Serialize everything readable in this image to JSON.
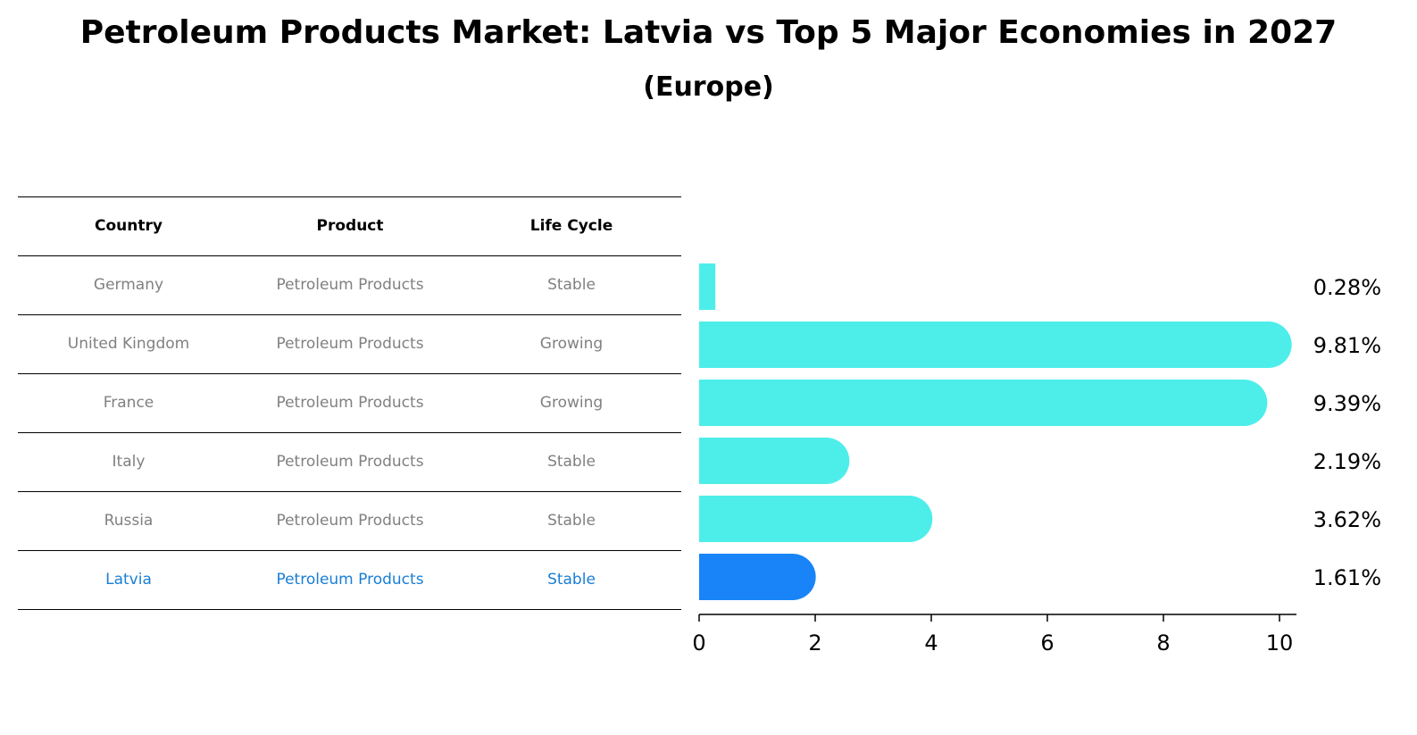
{
  "title": "Petroleum Products Market: Latvia vs Top 5 Major Economies in 2027",
  "subtitle": "(Europe)",
  "colors": {
    "bar": "#4deeea",
    "highlight_bar": "#1884f7",
    "row_text": "#808080",
    "highlight_text": "#1a7ed4"
  },
  "table": {
    "headers": [
      "Country",
      "Product",
      "Life Cycle"
    ],
    "rows": [
      [
        "Germany",
        "Petroleum Products",
        "Stable"
      ],
      [
        "United Kingdom",
        "Petroleum Products",
        "Growing"
      ],
      [
        "France",
        "Petroleum Products",
        "Growing"
      ],
      [
        "Italy",
        "Petroleum Products",
        "Stable"
      ],
      [
        "Russia",
        "Petroleum Products",
        "Stable"
      ],
      [
        "Latvia",
        "Petroleum Products",
        "Stable"
      ]
    ],
    "highlight_row": 5
  },
  "chart_data": {
    "type": "bar",
    "orientation": "horizontal",
    "title": "Petroleum Products Market: Latvia vs Top 5 Major Economies in 2027",
    "subtitle": "(Europe)",
    "categories": [
      "Germany",
      "United Kingdom",
      "France",
      "Italy",
      "Russia",
      "Latvia"
    ],
    "values": [
      0.28,
      9.81,
      9.39,
      2.19,
      3.62,
      1.61
    ],
    "value_labels": [
      "0.28%",
      "9.81%",
      "9.39%",
      "2.19%",
      "3.62%",
      "1.61%"
    ],
    "highlight": "Latvia",
    "xlim": [
      0,
      10.3
    ],
    "xticks": [
      0,
      2,
      4,
      6,
      8,
      10
    ],
    "xtick_labels": [
      "0",
      "2",
      "4",
      "6",
      "8",
      "10"
    ],
    "xlabel": "",
    "ylabel": "",
    "grid": false
  }
}
